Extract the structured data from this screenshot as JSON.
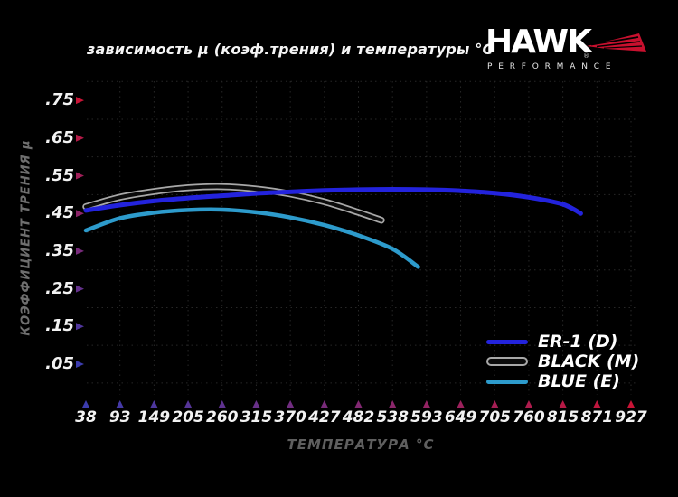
{
  "title": "зависимость μ (коэф.трения) и температуры °C",
  "logo": {
    "brand": "HAWK",
    "reg": "®",
    "sub": "PERFORMANCE",
    "wing_color": "#c8102e"
  },
  "y_axis": {
    "label": "КОЭФФИЦИЕНТ ТРЕНИЯ μ",
    "tick_labels": [
      ".75",
      ".65",
      ".55",
      ".45",
      ".35",
      ".25",
      ".15",
      ".05"
    ]
  },
  "x_axis": {
    "label": "ТЕМПЕРАТУРА °C",
    "tick_labels": [
      "38",
      "93",
      "149",
      "205",
      "260",
      "315",
      "370",
      "427",
      "482",
      "538",
      "593",
      "649",
      "705",
      "760",
      "815",
      "871",
      "927"
    ]
  },
  "legend": [
    {
      "label": "ER-1 (D)",
      "style": "line",
      "color": "#2323dd"
    },
    {
      "label": "BLACK (M)",
      "style": "capsule",
      "color": "#0b0b0b",
      "outline": "#a8a8a8"
    },
    {
      "label": "BLUE (E)",
      "style": "line",
      "color": "#2d9bcc"
    }
  ],
  "colors": {
    "background": "#000000",
    "axis_red": "#c81436",
    "axis_blue": "#3c3cae",
    "grid": "#272727",
    "tick_text": "#f2f2f2",
    "muted_text": "#6f6f6f",
    "er1_blue": "#2323dd",
    "blue_e": "#2d9bcc",
    "black_core": "#0b0b0b",
    "black_outline": "#a8a8a8"
  },
  "chart_data": {
    "type": "line",
    "title": "зависимость μ (коэф.трения) и температуры °C",
    "xlabel": "ТЕМПЕРАТУРА °C",
    "ylabel": "КОЭФФИЦИЕНТ ТРЕНИЯ μ",
    "x_ticks": [
      38,
      93,
      149,
      205,
      260,
      315,
      370,
      427,
      482,
      538,
      593,
      649,
      705,
      760,
      815,
      871,
      927
    ],
    "y_ticks": [
      0.05,
      0.15,
      0.25,
      0.35,
      0.45,
      0.55,
      0.65,
      0.75
    ],
    "xlim": [
      38,
      927
    ],
    "ylim": [
      0,
      0.8
    ],
    "grid": "dotted",
    "legend_position": "lower right",
    "series": [
      {
        "name": "ER-1 (D)",
        "color": "#2323dd",
        "points": [
          [
            38,
            0.458
          ],
          [
            93,
            0.472
          ],
          [
            149,
            0.483
          ],
          [
            205,
            0.491
          ],
          [
            260,
            0.497
          ],
          [
            315,
            0.503
          ],
          [
            370,
            0.507
          ],
          [
            427,
            0.511
          ],
          [
            482,
            0.513
          ],
          [
            538,
            0.514
          ],
          [
            593,
            0.513
          ],
          [
            649,
            0.51
          ],
          [
            705,
            0.504
          ],
          [
            760,
            0.493
          ],
          [
            815,
            0.475
          ],
          [
            845,
            0.45
          ]
        ]
      },
      {
        "name": "BLACK (M)",
        "color": "#0b0b0b",
        "outline_color": "#a8a8a8",
        "points": [
          [
            38,
            0.468
          ],
          [
            93,
            0.493
          ],
          [
            149,
            0.508
          ],
          [
            205,
            0.518
          ],
          [
            260,
            0.521
          ],
          [
            315,
            0.515
          ],
          [
            370,
            0.502
          ],
          [
            427,
            0.481
          ],
          [
            482,
            0.453
          ],
          [
            520,
            0.432
          ]
        ]
      },
      {
        "name": "BLUE (E)",
        "color": "#2d9bcc",
        "points": [
          [
            38,
            0.405
          ],
          [
            93,
            0.437
          ],
          [
            149,
            0.452
          ],
          [
            205,
            0.459
          ],
          [
            260,
            0.46
          ],
          [
            315,
            0.453
          ],
          [
            370,
            0.44
          ],
          [
            427,
            0.419
          ],
          [
            482,
            0.392
          ],
          [
            538,
            0.356
          ],
          [
            580,
            0.308
          ]
        ]
      }
    ]
  }
}
